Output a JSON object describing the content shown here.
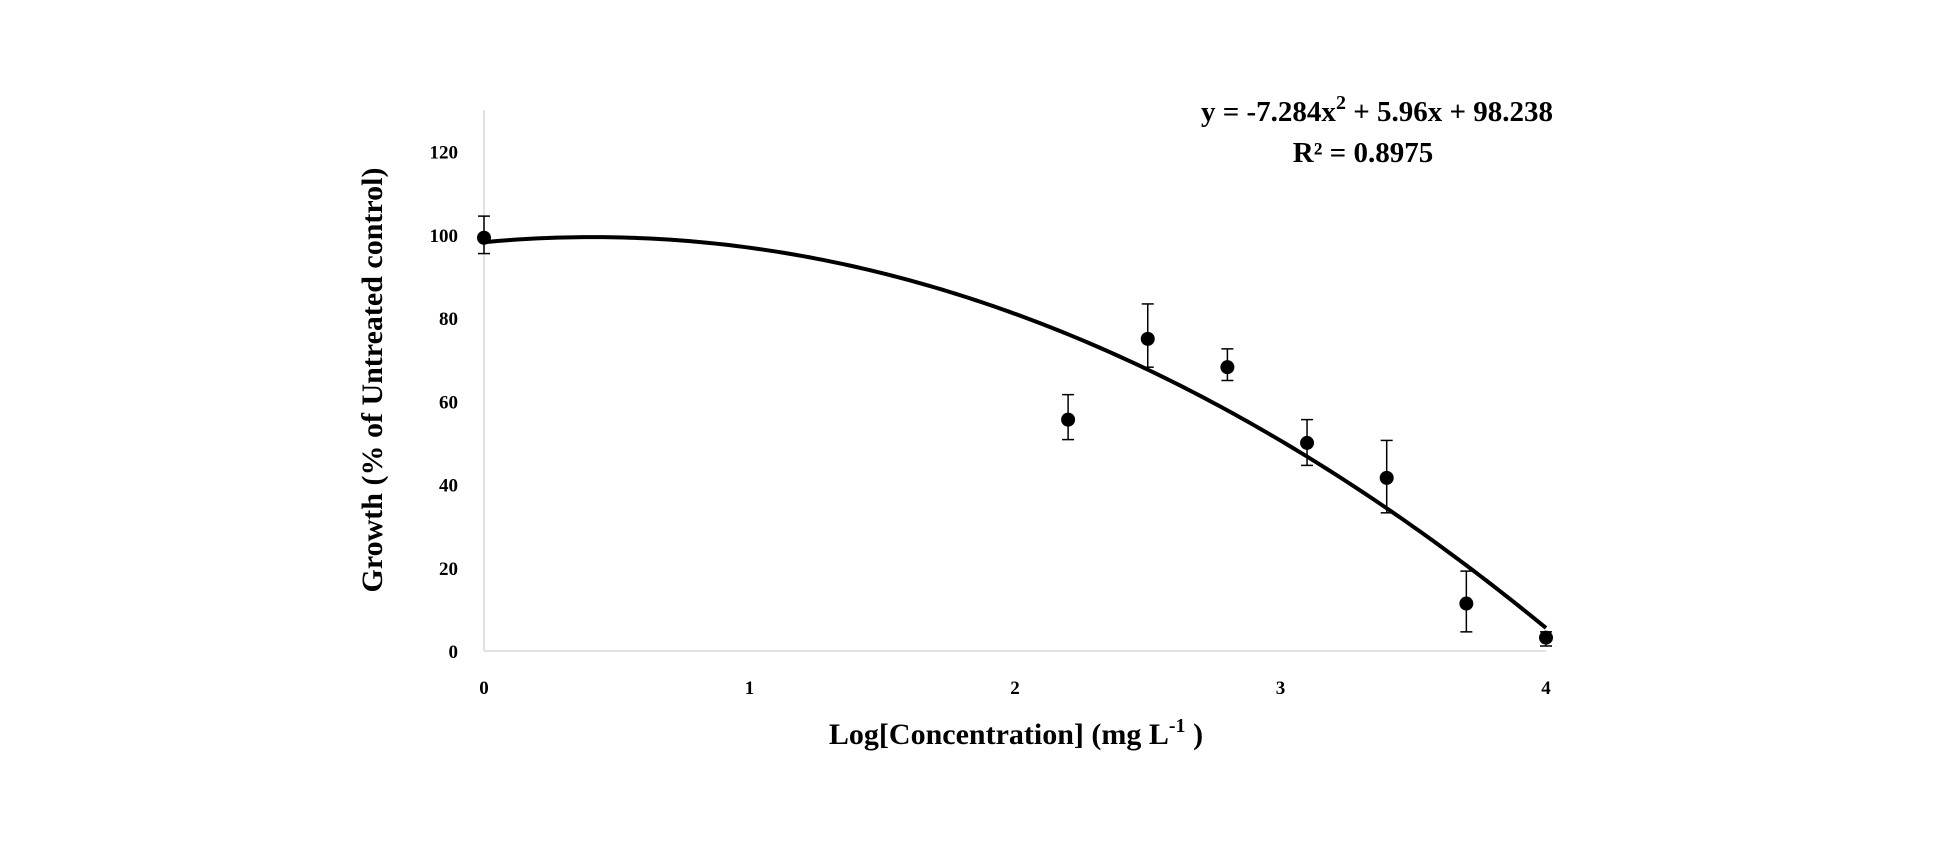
{
  "chart_data": {
    "type": "scatter",
    "xlabel": "Log[Concentration] (mg L",
    "xlabel_superscript": "-1",
    "xlabel_suffix": " )",
    "ylabel": "Growth (% of  Untreated control)",
    "xlim": [
      0,
      4
    ],
    "ylim": [
      0,
      130
    ],
    "x_ticks": [
      "0",
      "1",
      "2",
      "3",
      "4"
    ],
    "y_ticks": [
      "0",
      "20",
      "40",
      "60",
      "80",
      "100",
      "120"
    ],
    "grid": false,
    "legend": "none",
    "series": [
      {
        "points": [
          {
            "x": 0.0,
            "y": 99.3,
            "err_low": 95.5,
            "err_high": 104.5
          },
          {
            "x": 2.2,
            "y": 55.6,
            "err_low": 50.8,
            "err_high": 61.6
          },
          {
            "x": 2.5,
            "y": 75.0,
            "err_low": 68.2,
            "err_high": 83.4
          },
          {
            "x": 2.8,
            "y": 68.2,
            "err_low": 65.0,
            "err_high": 72.6
          },
          {
            "x": 3.1,
            "y": 50.0,
            "err_low": 44.6,
            "err_high": 55.6
          },
          {
            "x": 3.4,
            "y": 41.6,
            "err_low": 33.2,
            "err_high": 50.6
          },
          {
            "x": 3.7,
            "y": 11.4,
            "err_low": 4.6,
            "err_high": 19.2
          },
          {
            "x": 4.0,
            "y": 3.2,
            "err_low": 1.2,
            "err_high": 4.6
          }
        ]
      }
    ],
    "trendline": {
      "type": "polynomial",
      "coefficients": {
        "a": -7.284,
        "b": 5.96,
        "c": 98.238
      },
      "x_range": [
        0,
        4
      ]
    },
    "annotations": {
      "equation_prefix": "y = -7.284x",
      "equation_exponent": "2",
      "equation_suffix": " + 5.96x + 98.238",
      "r_squared": "R² = 0.8975"
    }
  }
}
